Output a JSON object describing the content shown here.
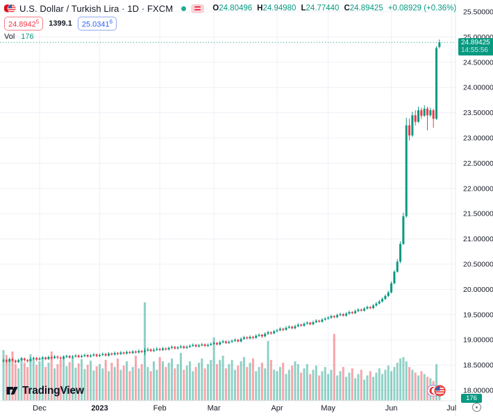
{
  "header": {
    "symbol_title": "U.S. Dollar / Turkish Lira · 1D · FXCM",
    "ohlc": {
      "o_label": "O",
      "o": "24.80496",
      "h_label": "H",
      "h": "24.94980",
      "l_label": "L",
      "l": "24.77440",
      "c_label": "C",
      "c": "24.89425",
      "change": "+0.08929 (+0.36%)"
    },
    "sell": {
      "main": "24.8942",
      "sup": "5"
    },
    "spread": "1399.1",
    "buy": {
      "main": "25.0341",
      "sup": "6"
    },
    "vol_label": "Vol",
    "vol_value": "176"
  },
  "price_axis": {
    "last_price_label": "24.89425",
    "countdown": "14:55:56",
    "vol_badge": "176"
  },
  "watermark_text": "TradingView",
  "colors": {
    "up": "#089981",
    "down": "#f23645",
    "vol_up": "rgba(8,153,129,0.45)",
    "vol_down": "rgba(242,54,69,0.45)",
    "grid": "#eef0f6",
    "axis_text": "#131722",
    "separator": "#e4e7ee",
    "accent_blue": "#2962ff",
    "badge_bg": "#089981"
  },
  "chart_data": {
    "type": "candlestick",
    "title": "U.S. Dollar / Turkish Lira",
    "symbol": "USDTRY",
    "timeframe": "1D",
    "exchange": "FXCM",
    "legend": [
      "price candles (USD/TRY)",
      "volume"
    ],
    "grid": true,
    "ylim": [
      17.95,
      25.55
    ],
    "current": {
      "open": 24.80496,
      "high": 24.9498,
      "low": 24.7744,
      "close": 24.89425,
      "change": 0.08929,
      "change_pct": 0.36,
      "volume": 176,
      "countdown": "14:55:56"
    },
    "price_ticks": [
      {
        "v": 25.5,
        "label": "25.50000"
      },
      {
        "v": 25.0,
        "label": "25.00000"
      },
      {
        "v": 24.5,
        "label": "24.50000"
      },
      {
        "v": 24.0,
        "label": "24.00000"
      },
      {
        "v": 23.5,
        "label": "23.50000"
      },
      {
        "v": 23.0,
        "label": "23.00000"
      },
      {
        "v": 22.5,
        "label": "22.50000"
      },
      {
        "v": 22.0,
        "label": "22.00000"
      },
      {
        "v": 21.5,
        "label": "21.50000"
      },
      {
        "v": 21.0,
        "label": "21.00000"
      },
      {
        "v": 20.5,
        "label": "20.50000"
      },
      {
        "v": 20.0,
        "label": "20.00000"
      },
      {
        "v": 19.5,
        "label": "19.50000"
      },
      {
        "v": 19.0,
        "label": "19.00000"
      },
      {
        "v": 18.5,
        "label": "18.50000"
      },
      {
        "v": 18.0,
        "label": "18.00000"
      }
    ],
    "months": [
      {
        "label": "Dec",
        "i": 12
      },
      {
        "label": "2023",
        "i": 32,
        "bold": true
      },
      {
        "label": "Feb",
        "i": 52
      },
      {
        "label": "Mar",
        "i": 70
      },
      {
        "label": "Apr",
        "i": 91
      },
      {
        "label": "May",
        "i": 108
      },
      {
        "label": "Jun",
        "i": 129
      },
      {
        "label": "Jul",
        "i": 149
      }
    ],
    "candles_note": "daily bars Nov 2022 - Jun 2023, format [open, high, low, close, volume]",
    "candles": [
      [
        18.58,
        18.63,
        18.55,
        18.6,
        720
      ],
      [
        18.6,
        18.62,
        18.54,
        18.57,
        650
      ],
      [
        18.57,
        18.65,
        18.55,
        18.62,
        580
      ],
      [
        18.62,
        18.64,
        18.56,
        18.59,
        700
      ],
      [
        18.59,
        18.61,
        18.53,
        18.56,
        520
      ],
      [
        18.56,
        18.63,
        18.54,
        18.6,
        460
      ],
      [
        18.6,
        18.66,
        18.58,
        18.63,
        610
      ],
      [
        18.63,
        18.65,
        18.57,
        18.6,
        540
      ],
      [
        18.6,
        18.62,
        18.55,
        18.58,
        480
      ],
      [
        18.58,
        18.65,
        18.56,
        18.62,
        660
      ],
      [
        18.62,
        18.67,
        18.6,
        18.64,
        590
      ],
      [
        18.64,
        18.66,
        18.58,
        18.61,
        510
      ],
      [
        18.61,
        18.66,
        18.59,
        18.63,
        560
      ],
      [
        18.63,
        18.68,
        18.61,
        18.65,
        620
      ],
      [
        18.65,
        18.67,
        18.6,
        18.62,
        480
      ],
      [
        18.62,
        18.69,
        18.6,
        18.66,
        540
      ],
      [
        18.66,
        18.68,
        18.61,
        18.64,
        700
      ],
      [
        18.64,
        18.7,
        18.62,
        18.67,
        460
      ],
      [
        18.67,
        18.69,
        18.62,
        18.65,
        520
      ],
      [
        18.65,
        18.67,
        18.6,
        18.63,
        580
      ],
      [
        18.63,
        18.69,
        18.61,
        18.66,
        640
      ],
      [
        18.66,
        18.71,
        18.64,
        18.68,
        490
      ],
      [
        18.68,
        18.7,
        18.63,
        18.65,
        550
      ],
      [
        18.65,
        18.7,
        18.63,
        18.67,
        610
      ],
      [
        18.67,
        18.72,
        18.65,
        18.69,
        470
      ],
      [
        18.69,
        18.71,
        18.64,
        18.66,
        530
      ],
      [
        18.66,
        18.71,
        18.64,
        18.68,
        590
      ],
      [
        18.68,
        18.73,
        18.66,
        18.7,
        450
      ],
      [
        18.7,
        18.72,
        18.65,
        18.67,
        510
      ],
      [
        18.67,
        18.72,
        18.65,
        18.69,
        570
      ],
      [
        18.69,
        18.74,
        18.67,
        18.71,
        430
      ],
      [
        18.71,
        18.73,
        18.66,
        18.68,
        490
      ],
      [
        18.68,
        18.73,
        18.66,
        18.7,
        520
      ],
      [
        18.7,
        18.75,
        18.68,
        18.72,
        460
      ],
      [
        18.72,
        18.74,
        18.67,
        18.69,
        580
      ],
      [
        18.69,
        18.76,
        18.67,
        18.73,
        420
      ],
      [
        18.73,
        18.75,
        18.69,
        18.71,
        540
      ],
      [
        18.71,
        18.77,
        18.69,
        18.74,
        480
      ],
      [
        18.74,
        18.76,
        18.7,
        18.72,
        600
      ],
      [
        18.72,
        18.78,
        18.7,
        18.75,
        440
      ],
      [
        18.75,
        18.77,
        18.71,
        18.73,
        500
      ],
      [
        18.73,
        18.79,
        18.71,
        18.76,
        560
      ],
      [
        18.76,
        18.78,
        18.72,
        18.74,
        420
      ],
      [
        18.74,
        18.8,
        18.72,
        18.77,
        480
      ],
      [
        18.77,
        18.79,
        18.73,
        18.75,
        640
      ],
      [
        18.75,
        18.81,
        18.73,
        18.78,
        460
      ],
      [
        18.78,
        18.8,
        18.74,
        18.76,
        520
      ],
      [
        18.76,
        18.84,
        18.7,
        18.79,
        1399
      ],
      [
        18.79,
        18.85,
        18.77,
        18.81,
        480
      ],
      [
        18.81,
        18.83,
        18.76,
        18.78,
        420
      ],
      [
        18.78,
        18.84,
        18.76,
        18.8,
        560
      ],
      [
        18.8,
        18.86,
        18.78,
        18.82,
        440
      ],
      [
        18.82,
        18.84,
        18.78,
        18.8,
        620
      ],
      [
        18.8,
        18.86,
        18.78,
        18.83,
        560
      ],
      [
        18.83,
        18.85,
        18.79,
        18.81,
        480
      ],
      [
        18.81,
        18.87,
        18.79,
        18.84,
        540
      ],
      [
        18.84,
        18.89,
        18.82,
        18.86,
        600
      ],
      [
        18.86,
        18.88,
        18.81,
        18.83,
        460
      ],
      [
        18.83,
        18.88,
        18.81,
        18.85,
        520
      ],
      [
        18.85,
        18.9,
        18.83,
        18.87,
        680
      ],
      [
        18.87,
        18.89,
        18.82,
        18.84,
        440
      ],
      [
        18.84,
        18.89,
        18.82,
        18.86,
        500
      ],
      [
        18.86,
        18.91,
        18.84,
        18.88,
        560
      ],
      [
        18.88,
        18.93,
        18.86,
        18.9,
        420
      ],
      [
        18.9,
        18.92,
        18.85,
        18.87,
        480
      ],
      [
        18.87,
        18.92,
        18.85,
        18.89,
        540
      ],
      [
        18.89,
        18.94,
        18.87,
        18.91,
        600
      ],
      [
        18.91,
        18.93,
        18.86,
        18.88,
        460
      ],
      [
        18.88,
        18.93,
        18.86,
        18.9,
        520
      ],
      [
        18.9,
        18.95,
        18.88,
        18.92,
        580
      ],
      [
        18.92,
        18.97,
        18.9,
        18.94,
        900
      ],
      [
        18.94,
        18.96,
        18.89,
        18.91,
        520
      ],
      [
        18.91,
        18.98,
        18.89,
        18.95,
        580
      ],
      [
        18.95,
        19.0,
        18.93,
        18.97,
        640
      ],
      [
        18.97,
        18.99,
        18.92,
        18.94,
        460
      ],
      [
        18.94,
        18.99,
        18.92,
        18.96,
        520
      ],
      [
        18.96,
        19.01,
        18.94,
        18.98,
        580
      ],
      [
        18.98,
        19.03,
        18.96,
        19.0,
        440
      ],
      [
        19.0,
        19.02,
        18.95,
        18.97,
        500
      ],
      [
        18.97,
        19.05,
        18.95,
        19.02,
        560
      ],
      [
        19.02,
        19.08,
        19.0,
        19.05,
        620
      ],
      [
        19.05,
        19.07,
        19.01,
        19.03,
        480
      ],
      [
        19.03,
        19.09,
        19.01,
        19.06,
        540
      ],
      [
        19.06,
        19.08,
        19.01,
        19.04,
        600
      ],
      [
        19.04,
        19.11,
        19.02,
        19.08,
        420
      ],
      [
        19.08,
        19.13,
        19.06,
        19.1,
        480
      ],
      [
        19.1,
        19.12,
        19.04,
        19.07,
        540
      ],
      [
        19.07,
        19.15,
        19.05,
        19.12,
        460
      ],
      [
        19.12,
        19.18,
        19.1,
        19.15,
        850
      ],
      [
        19.15,
        19.17,
        19.1,
        19.13,
        580
      ],
      [
        19.13,
        19.2,
        19.11,
        19.17,
        440
      ],
      [
        19.17,
        19.22,
        19.15,
        19.19,
        420
      ],
      [
        19.19,
        19.25,
        19.17,
        19.22,
        480
      ],
      [
        19.22,
        19.24,
        19.17,
        19.2,
        540
      ],
      [
        19.2,
        19.27,
        19.18,
        19.24,
        380
      ],
      [
        19.24,
        19.29,
        19.22,
        19.26,
        440
      ],
      [
        19.26,
        19.28,
        19.21,
        19.23,
        500
      ],
      [
        19.23,
        19.3,
        19.21,
        19.27,
        560
      ],
      [
        19.27,
        19.33,
        19.25,
        19.3,
        520
      ],
      [
        19.3,
        19.32,
        19.26,
        19.28,
        400
      ],
      [
        19.28,
        19.35,
        19.26,
        19.32,
        460
      ],
      [
        19.32,
        19.37,
        19.3,
        19.34,
        520
      ],
      [
        19.34,
        19.36,
        19.29,
        19.31,
        380
      ],
      [
        19.31,
        19.38,
        19.29,
        19.35,
        440
      ],
      [
        19.35,
        19.41,
        19.33,
        19.38,
        500
      ],
      [
        19.38,
        19.4,
        19.34,
        19.36,
        360
      ],
      [
        19.36,
        19.43,
        19.34,
        19.4,
        420
      ],
      [
        19.4,
        19.45,
        19.38,
        19.42,
        480
      ],
      [
        19.42,
        19.47,
        19.4,
        19.44,
        380
      ],
      [
        19.44,
        19.5,
        19.42,
        19.47,
        440
      ],
      [
        19.47,
        19.49,
        19.43,
        19.45,
        950
      ],
      [
        19.45,
        19.52,
        19.43,
        19.49,
        360
      ],
      [
        19.49,
        19.54,
        19.47,
        19.51,
        420
      ],
      [
        19.51,
        19.53,
        19.46,
        19.48,
        480
      ],
      [
        19.48,
        19.55,
        19.46,
        19.52,
        340
      ],
      [
        19.52,
        19.58,
        19.5,
        19.55,
        400
      ],
      [
        19.55,
        19.57,
        19.51,
        19.53,
        460
      ],
      [
        19.53,
        19.6,
        19.51,
        19.57,
        320
      ],
      [
        19.57,
        19.63,
        19.55,
        19.6,
        380
      ],
      [
        19.6,
        19.62,
        19.56,
        19.58,
        440
      ],
      [
        19.58,
        19.65,
        19.56,
        19.62,
        300
      ],
      [
        19.62,
        19.68,
        19.6,
        19.65,
        360
      ],
      [
        19.65,
        19.67,
        19.61,
        19.63,
        420
      ],
      [
        19.63,
        19.71,
        19.61,
        19.68,
        340
      ],
      [
        19.68,
        19.75,
        19.66,
        19.72,
        400
      ],
      [
        19.72,
        19.79,
        19.7,
        19.76,
        460
      ],
      [
        19.76,
        19.84,
        19.74,
        19.81,
        380
      ],
      [
        19.81,
        19.9,
        19.79,
        19.87,
        440
      ],
      [
        19.87,
        19.97,
        19.85,
        19.94,
        500
      ],
      [
        19.94,
        20.16,
        19.92,
        20.12,
        420
      ],
      [
        20.12,
        20.38,
        20.1,
        20.35,
        480
      ],
      [
        20.35,
        20.6,
        20.33,
        20.55,
        540
      ],
      [
        20.55,
        20.95,
        20.52,
        20.9,
        600
      ],
      [
        20.9,
        21.52,
        20.88,
        21.45,
        620
      ],
      [
        21.45,
        23.4,
        21.42,
        23.25,
        560
      ],
      [
        23.25,
        23.38,
        22.95,
        23.05,
        480
      ],
      [
        23.05,
        23.52,
        23.02,
        23.45,
        440
      ],
      [
        23.45,
        23.55,
        23.25,
        23.32,
        400
      ],
      [
        23.32,
        23.62,
        23.3,
        23.55,
        360
      ],
      [
        23.55,
        23.6,
        23.38,
        23.44,
        420
      ],
      [
        23.44,
        23.65,
        23.42,
        23.58,
        380
      ],
      [
        23.58,
        23.62,
        23.15,
        23.45,
        340
      ],
      [
        23.45,
        23.6,
        23.42,
        23.55,
        320
      ],
      [
        23.55,
        23.58,
        23.2,
        23.38,
        280
      ],
      [
        23.38,
        24.82,
        23.36,
        24.78,
        520
      ],
      [
        24.805,
        24.95,
        24.774,
        24.894,
        176
      ]
    ]
  }
}
